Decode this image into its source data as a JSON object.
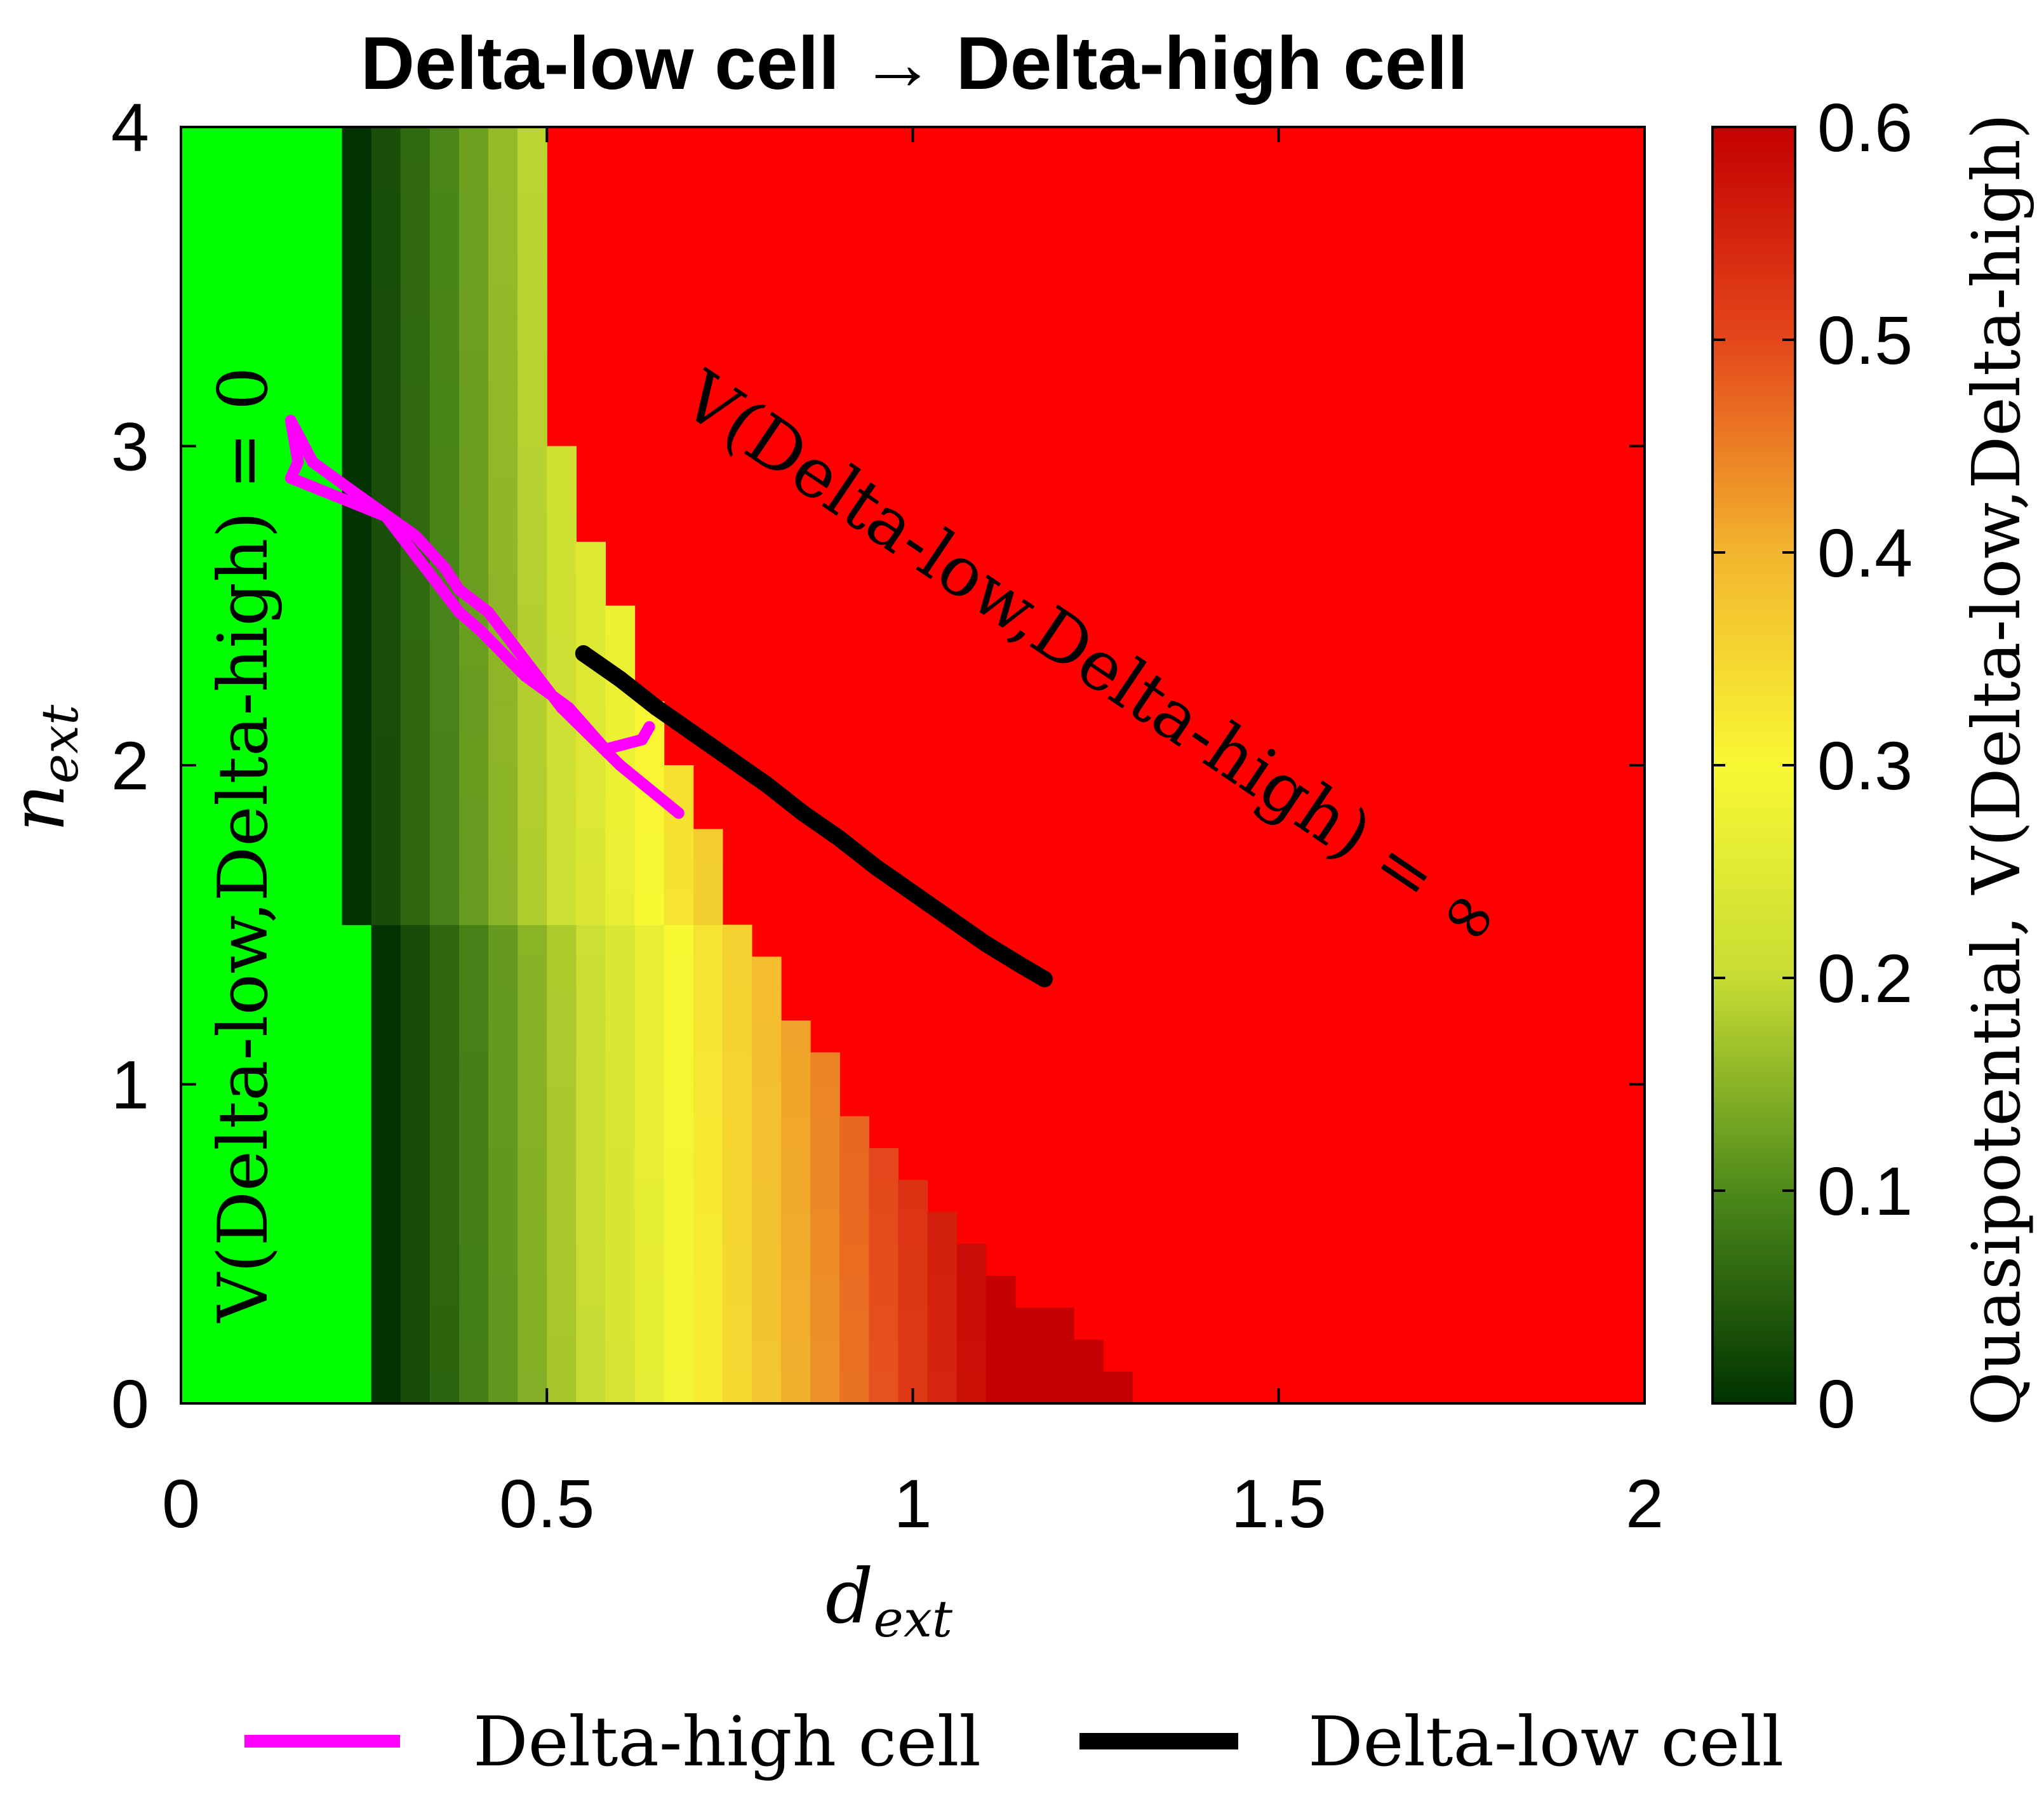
{
  "chart_data": {
    "type": "heatmap",
    "title": "Delta-low cell → Delta-high cell",
    "xlabel": "d",
    "xlabel_sub": "ext",
    "ylabel": "n",
    "ylabel_sub": "ext",
    "xlim": [
      0,
      2
    ],
    "ylim": [
      0,
      4
    ],
    "xticks": [
      0,
      0.5,
      1,
      1.5,
      2
    ],
    "xtick_labels": [
      "0",
      "0.5",
      "1",
      "1.5",
      "2"
    ],
    "yticks": [
      0,
      1,
      2,
      3,
      4
    ],
    "ytick_labels": [
      "0",
      "1",
      "2",
      "3",
      "4"
    ],
    "colorbar": {
      "label": "Quasipotential, V(Delta-low,Delta-high)",
      "range": [
        0,
        0.6
      ],
      "ticks": [
        0,
        0.1,
        0.2,
        0.3,
        0.4,
        0.5,
        0.6
      ],
      "tick_labels": [
        "0",
        "0.1",
        "0.2",
        "0.3",
        "0.4",
        "0.5",
        "0.6"
      ],
      "colors": [
        "#003300",
        "#4d8a1a",
        "#c7dc33",
        "#f8f833",
        "#f2b52e",
        "#e4471b",
        "#c40000"
      ]
    },
    "grid": {
      "dx": 0.04,
      "dy": 0.1,
      "zero_region_color": "#00ff00",
      "infinite_region_color": "#ff0000",
      "min_d": 0.22,
      "min_d_high_n": 0.26,
      "low_high_boundary_n": 1.55,
      "max_d_breakpoints": [
        {
          "n": 0.0,
          "d": 1.32
        },
        {
          "n": 0.5,
          "d": 1.04
        },
        {
          "n": 1.0,
          "d": 0.88
        },
        {
          "n": 1.5,
          "d": 0.74
        },
        {
          "n": 2.0,
          "d": 0.66
        },
        {
          "n": 2.5,
          "d": 0.58
        },
        {
          "n": 3.0,
          "d": 0.5
        },
        {
          "n": 3.5,
          "d": 0.48
        },
        {
          "n": 4.0,
          "d": 0.46
        }
      ],
      "value_model": {
        "v_at_min": 0.0,
        "slope_per_unit_d": 0.72,
        "n_slope": 0.02
      }
    },
    "series": [
      {
        "name": "Delta-high cell",
        "color": "#ff00ff",
        "x": [
          0.68,
          0.6,
          0.52,
          0.48,
          0.42,
          0.38,
          0.36,
          0.32,
          0.24,
          0.18,
          0.15,
          0.16,
          0.15,
          0.28,
          0.34,
          0.38,
          0.41,
          0.47,
          0.53,
          0.58,
          0.63,
          0.64
        ],
        "y": [
          1.85,
          2.0,
          2.18,
          2.3,
          2.48,
          2.55,
          2.62,
          2.72,
          2.85,
          2.95,
          3.08,
          2.95,
          2.9,
          2.78,
          2.6,
          2.48,
          2.42,
          2.28,
          2.18,
          2.05,
          2.08,
          2.12
        ]
      },
      {
        "name": "Delta-low cell",
        "color": "#000000",
        "x": [
          0.55,
          0.6,
          0.65,
          0.7,
          0.75,
          0.8,
          0.85,
          0.9,
          0.95,
          1.0,
          1.05,
          1.1,
          1.15,
          1.18
        ],
        "y": [
          2.35,
          2.27,
          2.18,
          2.1,
          2.02,
          1.94,
          1.85,
          1.77,
          1.68,
          1.6,
          1.52,
          1.44,
          1.37,
          1.33
        ]
      }
    ],
    "annotations": [
      {
        "text": "V(Delta-low,Delta-high) = 0",
        "color": "#000000"
      },
      {
        "text": "V(Delta-low,Delta-high) = ∞",
        "color": "#000000"
      }
    ],
    "legend": {
      "placement": "bottom",
      "items": [
        {
          "label": "Delta-high cell",
          "color": "#ff00ff"
        },
        {
          "label": "Delta-low cell",
          "color": "#000000"
        }
      ]
    }
  }
}
